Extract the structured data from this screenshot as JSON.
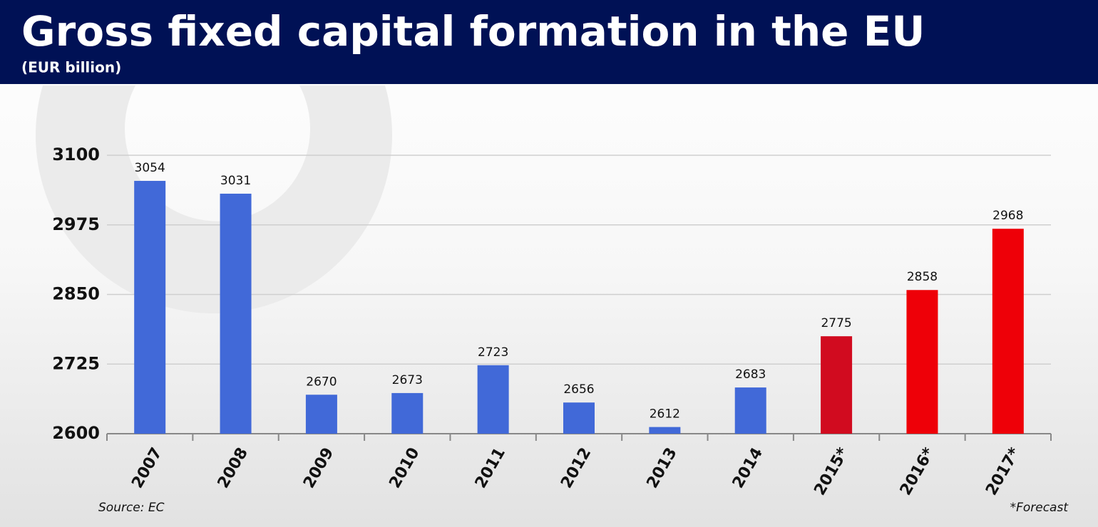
{
  "chart_data": {
    "type": "bar",
    "title": "Gross fixed capital formation in the EU",
    "subtitle": "(EUR billion)",
    "categories": [
      "2007",
      "2008",
      "2009",
      "2010",
      "2011",
      "2012",
      "2013",
      "2014",
      "2015*",
      "2016*",
      "2017*"
    ],
    "values": [
      3054,
      3031,
      2670,
      2673,
      2723,
      2656,
      2612,
      2683,
      2775,
      2858,
      2968
    ],
    "colors": [
      "#4169d8",
      "#4169d8",
      "#4169d8",
      "#4169d8",
      "#4169d8",
      "#4169d8",
      "#4169d8",
      "#4169d8",
      "#d10b1f",
      "#ee0008",
      "#ee0008"
    ],
    "ylim": [
      2600,
      3100
    ],
    "yticks": [
      2600,
      2725,
      2850,
      2975,
      3100
    ],
    "grid": true,
    "source": "Source: EC",
    "note": "*Forecast"
  }
}
